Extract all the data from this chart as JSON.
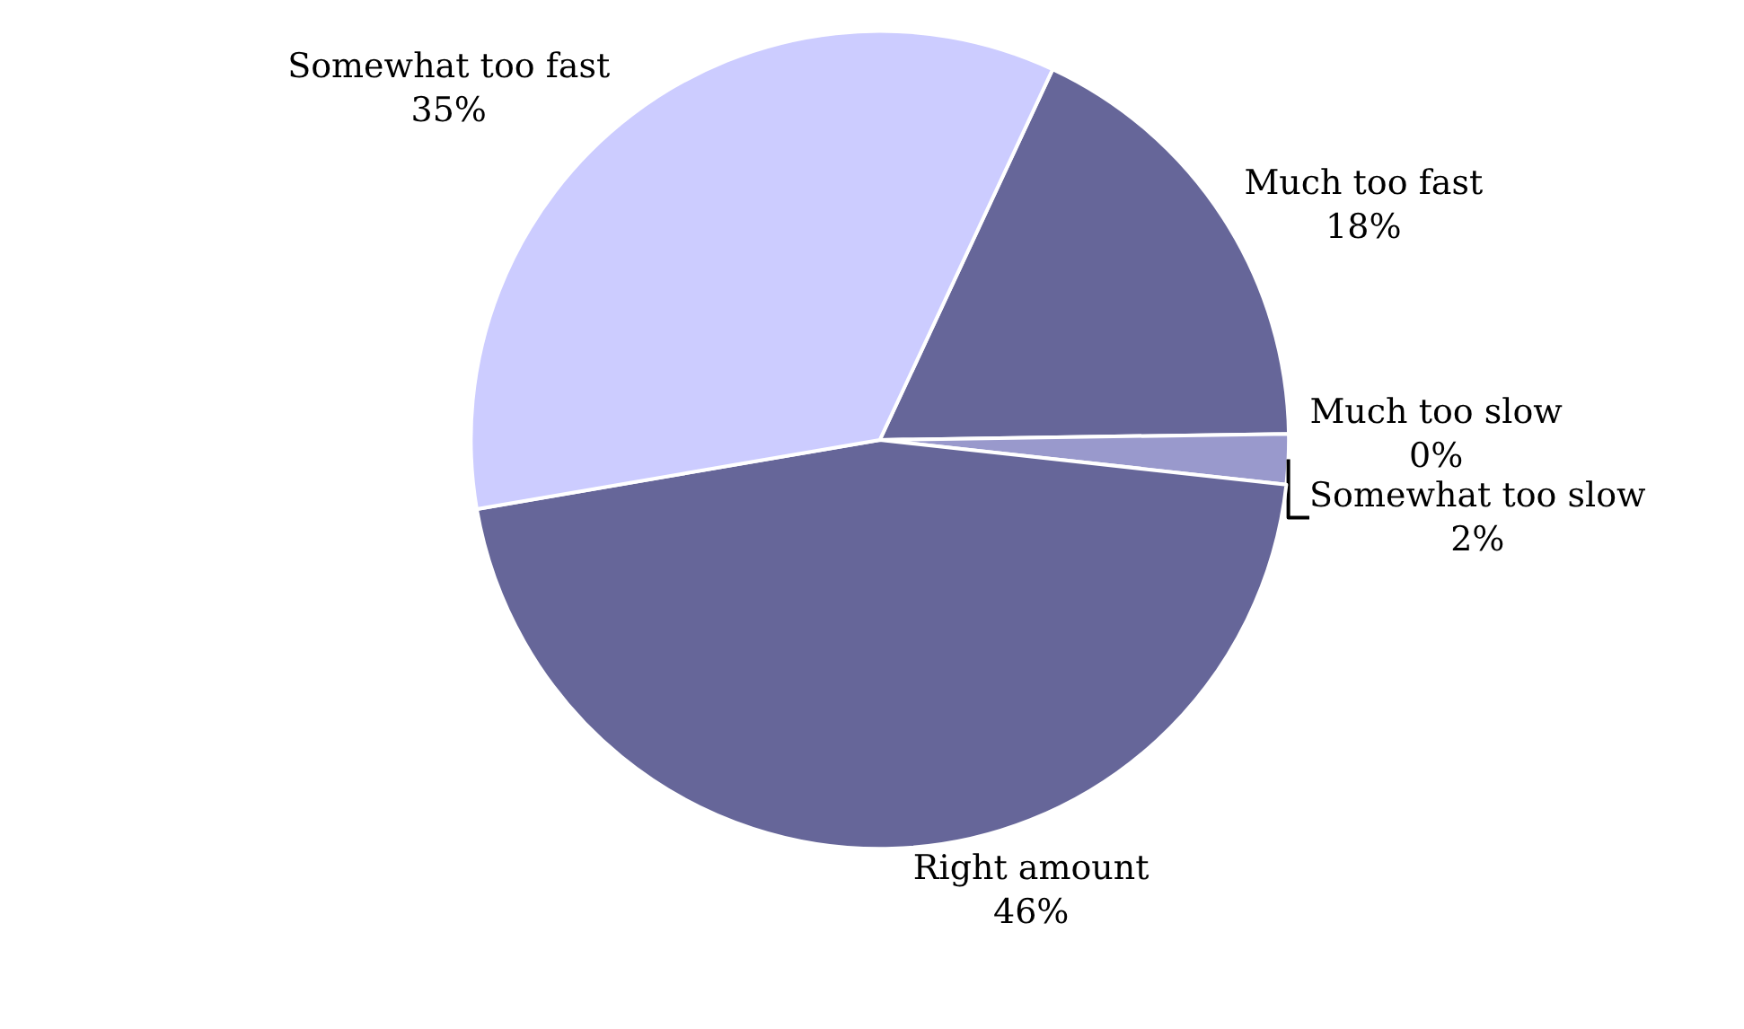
{
  "chart_data": {
    "type": "pie",
    "categories": [
      "Much too fast",
      "Much too slow",
      "Somewhat too slow",
      "Right amount",
      "Somewhat too fast"
    ],
    "values": [
      18,
      0,
      2,
      46,
      35
    ],
    "value_labels": [
      "18%",
      "0%",
      "2%",
      "46%",
      "35%"
    ],
    "colors": [
      "#666699",
      "#ccccff",
      "#9999cc",
      "#666699",
      "#ccccff"
    ],
    "legend": false
  }
}
